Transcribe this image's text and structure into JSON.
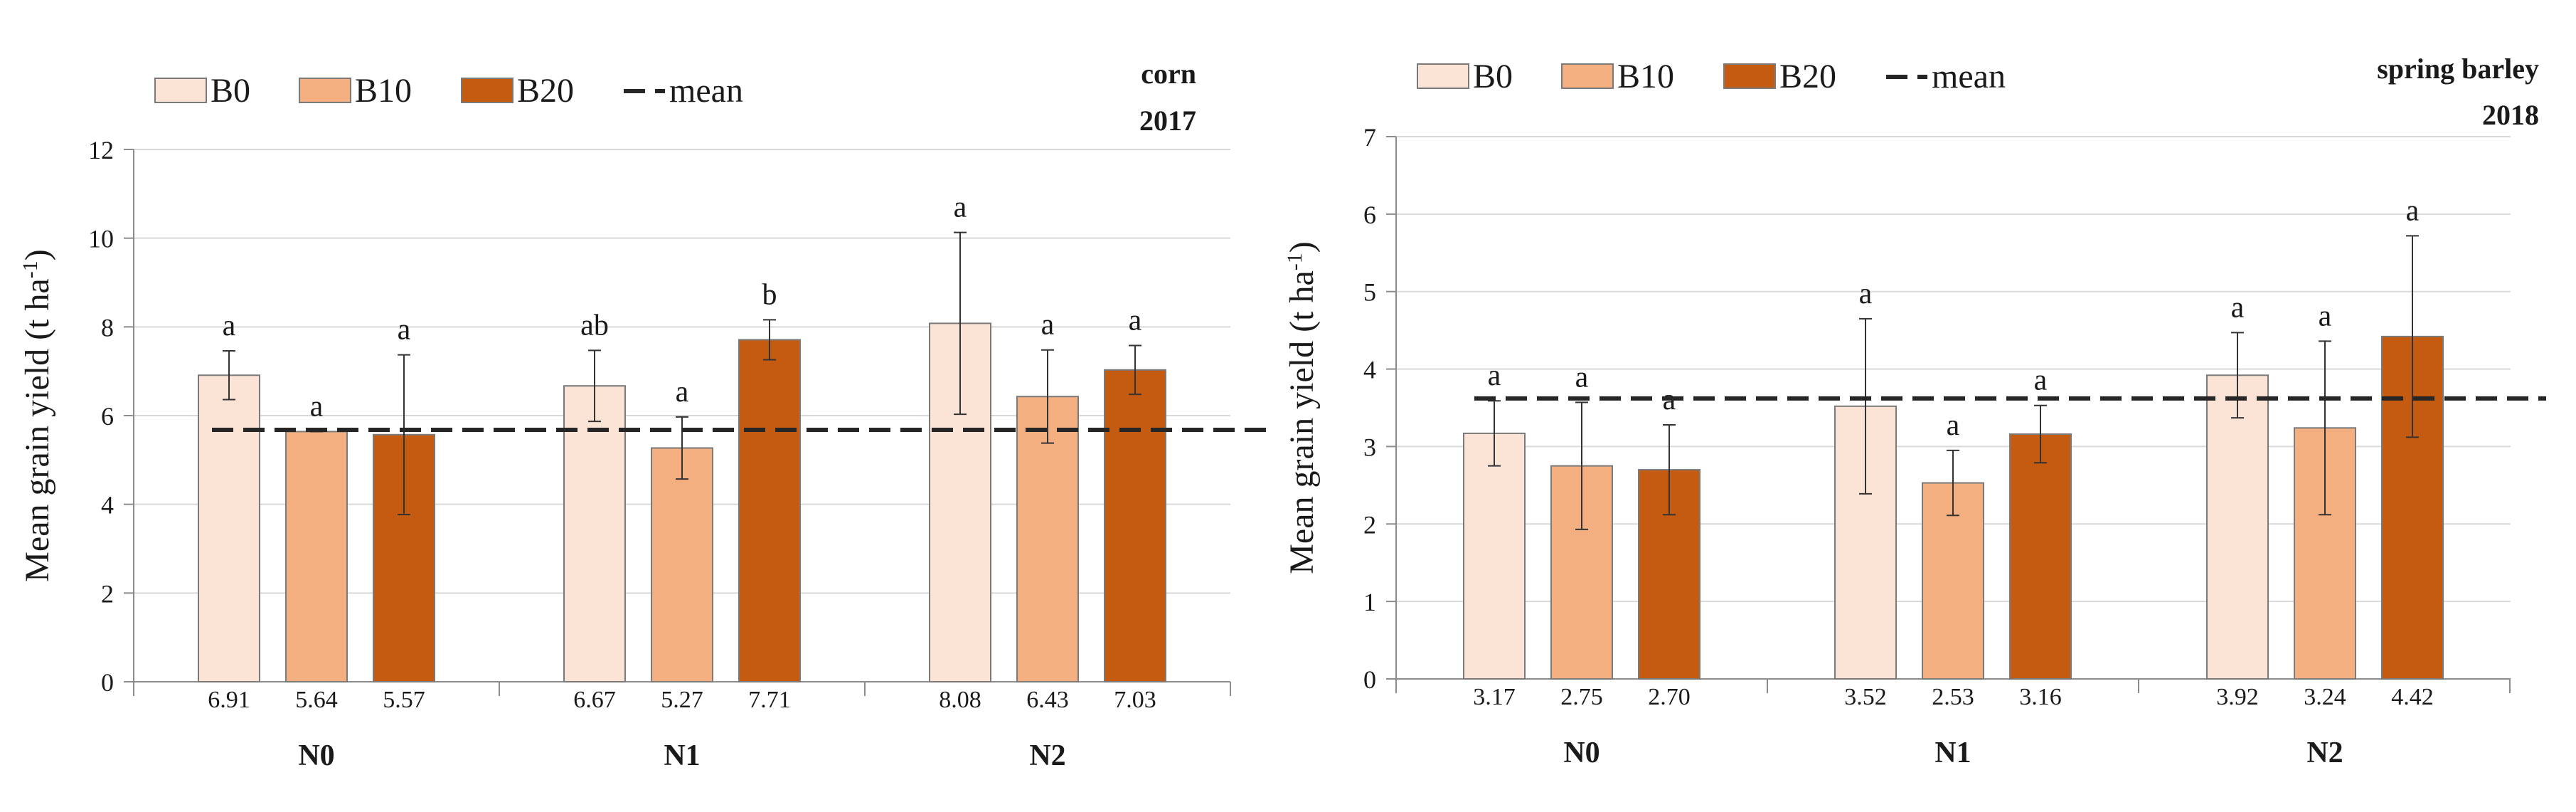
{
  "chart_data": [
    {
      "type": "bar",
      "title_line1": "corn",
      "title_line2": "2017",
      "ylabel_main": "Mean grain yield (t ha",
      "ylabel_sup": "-1",
      "ylabel_end": ")",
      "ylim": [
        0,
        12
      ],
      "yticks": [
        "0",
        "2",
        "4",
        "6",
        "8",
        "10",
        "12"
      ],
      "groups": [
        "N0",
        "N1",
        "N2"
      ],
      "mean": 5.68,
      "legend": {
        "b0": "B0",
        "b10": "B10",
        "b20": "B20",
        "mean": "mean"
      },
      "series": [
        {
          "name": "B0",
          "color": "#fbe3d6",
          "values": [
            6.91,
            6.67,
            8.08
          ],
          "labels": [
            "6.91",
            "6.67",
            "8.08"
          ],
          "errors": [
            0.55,
            0.8,
            2.05
          ],
          "letters": [
            "a",
            "ab",
            "a"
          ]
        },
        {
          "name": "B10",
          "color": "#f3af80",
          "values": [
            5.64,
            5.27,
            6.43
          ],
          "labels": [
            "5.64",
            "5.27",
            "6.43"
          ],
          "errors": [
            0.0,
            0.7,
            1.05
          ],
          "letters": [
            "a",
            "a",
            "a"
          ]
        },
        {
          "name": "B20",
          "color": "#c55a11",
          "values": [
            5.57,
            7.71,
            7.03
          ],
          "labels": [
            "5.57",
            "7.71",
            "7.03"
          ],
          "errors": [
            1.8,
            0.45,
            0.55
          ],
          "letters": [
            "a",
            "b",
            "a"
          ]
        }
      ]
    },
    {
      "type": "bar",
      "title_line1": "spring barley",
      "title_line2": "2018",
      "ylabel_main": "Mean grain yield (t ha",
      "ylabel_sup": "-1",
      "ylabel_end": ")",
      "ylim": [
        0,
        7
      ],
      "yticks": [
        "0",
        "1",
        "2",
        "3",
        "4",
        "5",
        "6",
        "7"
      ],
      "groups": [
        "N0",
        "N1",
        "N2"
      ],
      "mean": 3.62,
      "legend": {
        "b0": "B0",
        "b10": "B10",
        "b20": "B20",
        "mean": "mean"
      },
      "series": [
        {
          "name": "B0",
          "color": "#fbe3d6",
          "values": [
            3.17,
            3.52,
            3.92
          ],
          "labels": [
            "3.17",
            "3.52",
            "3.92"
          ],
          "errors": [
            0.42,
            1.13,
            0.55
          ],
          "letters": [
            "a",
            "a",
            "a"
          ]
        },
        {
          "name": "B10",
          "color": "#f3af80",
          "values": [
            2.75,
            2.53,
            3.24
          ],
          "labels": [
            "2.75",
            "2.53",
            "3.24"
          ],
          "errors": [
            0.82,
            0.42,
            1.12
          ],
          "letters": [
            "a",
            "a",
            "a"
          ]
        },
        {
          "name": "B20",
          "color": "#c55a11",
          "values": [
            2.7,
            3.16,
            4.42
          ],
          "labels": [
            "2.70",
            "3.16",
            "4.42"
          ],
          "errors": [
            0.58,
            0.37,
            1.3
          ],
          "letters": [
            "a",
            "a",
            "a"
          ]
        }
      ]
    }
  ]
}
